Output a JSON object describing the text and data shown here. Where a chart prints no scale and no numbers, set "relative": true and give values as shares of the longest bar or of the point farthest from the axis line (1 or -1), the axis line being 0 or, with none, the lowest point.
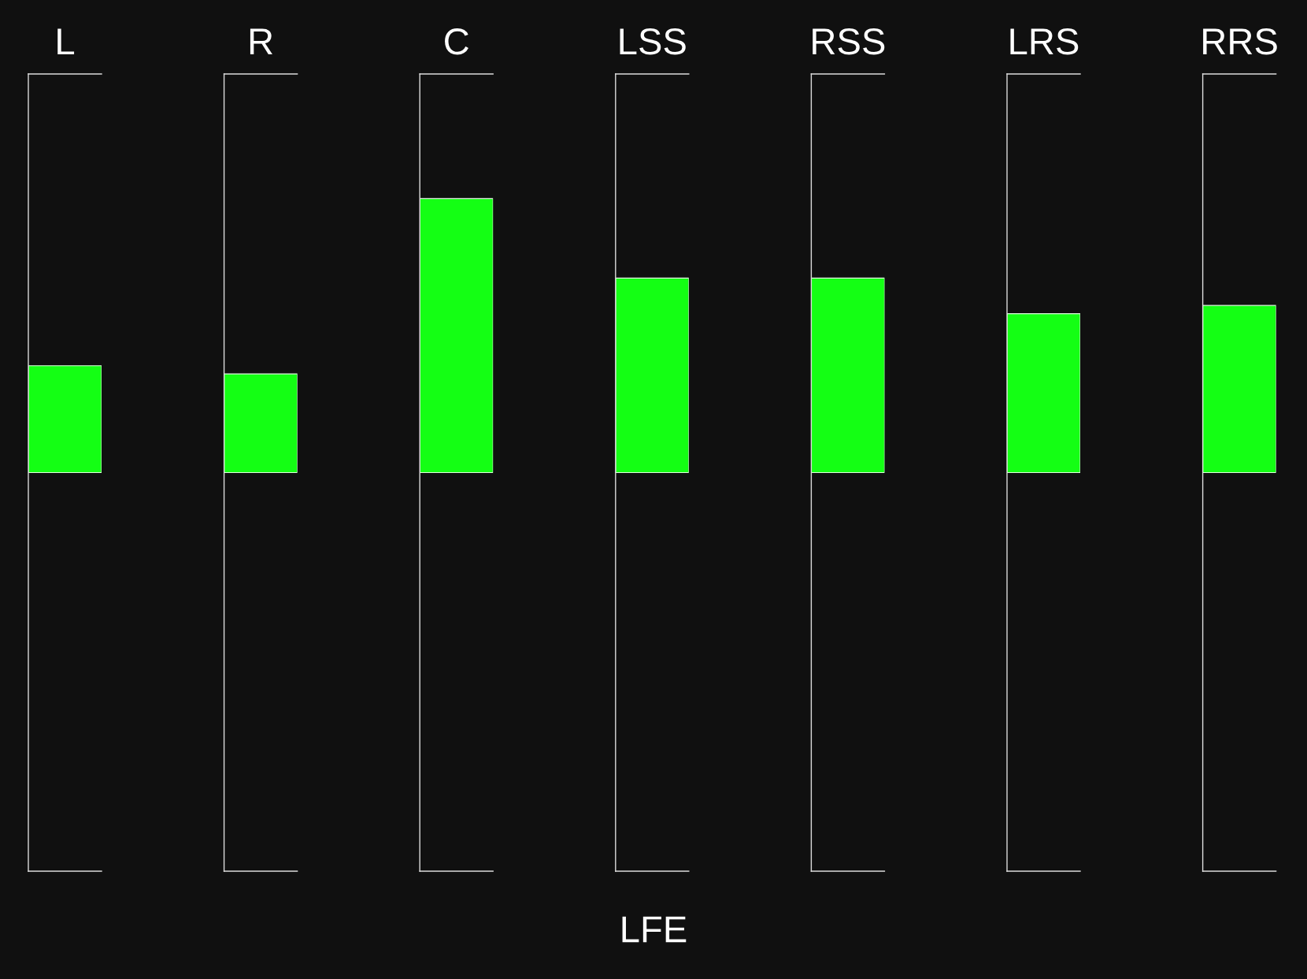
{
  "chart_data": {
    "type": "bar",
    "relative": true,
    "categories": [
      "L",
      "R",
      "C",
      "LSS",
      "RSS",
      "LRS",
      "RRS"
    ],
    "values": [
      0.39,
      0.36,
      1,
      0.71,
      0.71,
      0.58,
      0.61
    ],
    "color": "#14ff14",
    "annotations": [
      "LFE"
    ]
  }
}
